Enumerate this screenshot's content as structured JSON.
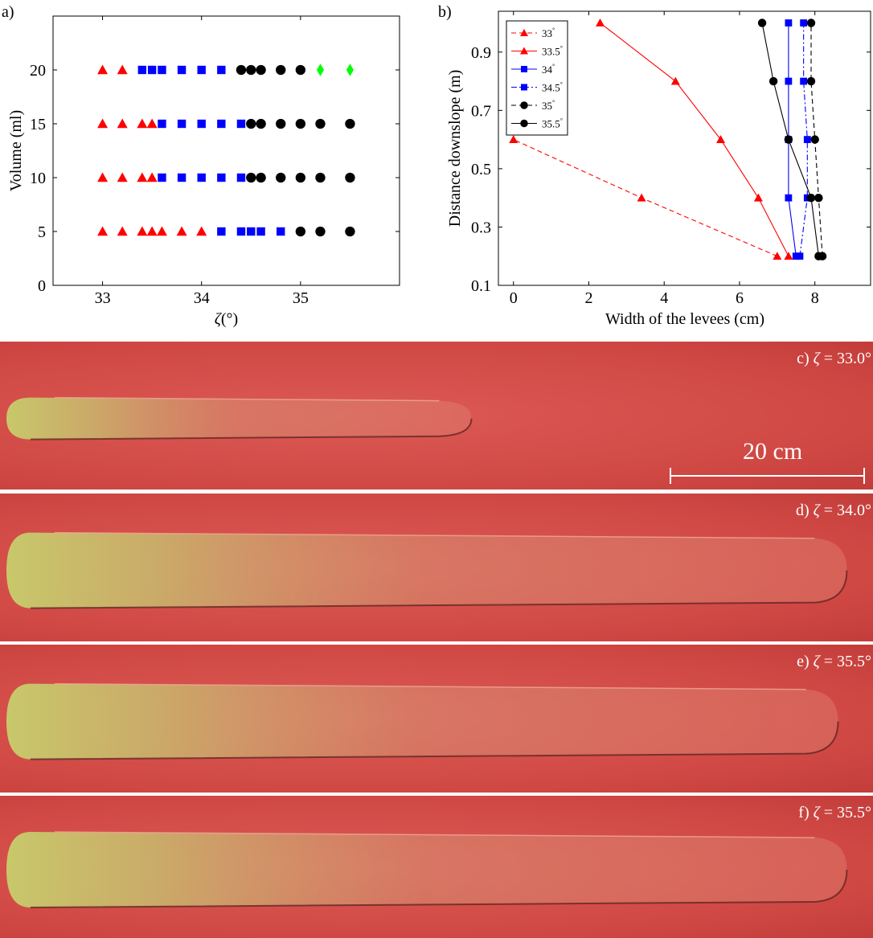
{
  "panel_a": {
    "label": "a)",
    "chart_data": {
      "type": "scatter",
      "xlabel_symbol": "ζ",
      "xlabel_unit": "(°)",
      "ylabel": "Volume (ml)",
      "xlim": [
        32.5,
        36.0
      ],
      "ylim": [
        0,
        25
      ],
      "xticks": [
        "33",
        "34",
        "35"
      ],
      "xtick_values": [
        33,
        34,
        35
      ],
      "yticks": [
        "0",
        "5",
        "10",
        "15",
        "20"
      ],
      "ytick_values": [
        0,
        5,
        10,
        15,
        20
      ],
      "grid": false,
      "legend": "none",
      "series": [
        {
          "marker": "triangle",
          "color": "#ff0000",
          "points": [
            [
              33,
              5
            ],
            [
              33.2,
              5
            ],
            [
              33.4,
              5
            ],
            [
              33.5,
              5
            ],
            [
              33.6,
              5
            ],
            [
              33.8,
              5
            ],
            [
              34.0,
              5
            ],
            [
              33,
              10
            ],
            [
              33.2,
              10
            ],
            [
              33.4,
              10
            ],
            [
              33.5,
              10
            ],
            [
              33,
              15
            ],
            [
              33.2,
              15
            ],
            [
              33.4,
              15
            ],
            [
              33.5,
              15
            ],
            [
              33,
              20
            ],
            [
              33.2,
              20
            ]
          ]
        },
        {
          "marker": "square",
          "color": "#0000ff",
          "points": [
            [
              34.2,
              5
            ],
            [
              34.4,
              5
            ],
            [
              34.5,
              5
            ],
            [
              34.6,
              5
            ],
            [
              34.8,
              5
            ],
            [
              33.6,
              10
            ],
            [
              33.8,
              10
            ],
            [
              34.0,
              10
            ],
            [
              34.2,
              10
            ],
            [
              34.4,
              10
            ],
            [
              33.6,
              15
            ],
            [
              33.8,
              15
            ],
            [
              34.0,
              15
            ],
            [
              34.2,
              15
            ],
            [
              34.4,
              15
            ],
            [
              33.4,
              20
            ],
            [
              33.5,
              20
            ],
            [
              33.6,
              20
            ],
            [
              33.8,
              20
            ],
            [
              34.0,
              20
            ],
            [
              34.2,
              20
            ]
          ]
        },
        {
          "marker": "circle",
          "color": "#000000",
          "points": [
            [
              35.0,
              5
            ],
            [
              35.2,
              5
            ],
            [
              35.5,
              5
            ],
            [
              34.5,
              10
            ],
            [
              34.6,
              10
            ],
            [
              34.8,
              10
            ],
            [
              35.0,
              10
            ],
            [
              35.2,
              10
            ],
            [
              35.5,
              10
            ],
            [
              34.5,
              15
            ],
            [
              34.6,
              15
            ],
            [
              34.8,
              15
            ],
            [
              35.0,
              15
            ],
            [
              35.2,
              15
            ],
            [
              35.5,
              15
            ],
            [
              34.4,
              20
            ],
            [
              34.5,
              20
            ],
            [
              34.6,
              20
            ],
            [
              34.8,
              20
            ],
            [
              35.0,
              20
            ]
          ]
        },
        {
          "marker": "diamond",
          "color": "#00ff00",
          "points": [
            [
              35.2,
              20
            ],
            [
              35.5,
              20
            ]
          ]
        }
      ]
    }
  },
  "panel_b": {
    "label": "b)",
    "chart_data": {
      "type": "line",
      "xlabel": "Width of the levees (cm)",
      "ylabel": "Distance downslope (m)",
      "xlim": [
        -0.4,
        9.5
      ],
      "ylim": [
        0.1,
        1.04
      ],
      "xticks": [
        "0",
        "2",
        "4",
        "6",
        "8"
      ],
      "xtick_values": [
        0,
        2,
        4,
        6,
        8
      ],
      "yticks": [
        "0.1",
        "0.3",
        "0.5",
        "0.7",
        "0.9"
      ],
      "ytick_values": [
        0.1,
        0.3,
        0.5,
        0.7,
        0.9
      ],
      "grid": false,
      "legend": "top-left",
      "series": [
        {
          "name": "33",
          "color": "#ff0000",
          "dash": "dashed",
          "marker": "triangle",
          "x": [
            7.0,
            3.4,
            0.0
          ],
          "y": [
            0.2,
            0.4,
            0.6
          ]
        },
        {
          "name": "33.5",
          "color": "#ff0000",
          "dash": "solid",
          "marker": "triangle",
          "x": [
            7.3,
            6.5,
            5.5,
            4.3,
            2.3
          ],
          "y": [
            0.2,
            0.4,
            0.6,
            0.8,
            1.0
          ]
        },
        {
          "name": "34",
          "color": "#0000ff",
          "dash": "solid",
          "marker": "square",
          "x": [
            7.5,
            7.3,
            7.3,
            7.3,
            7.3
          ],
          "y": [
            0.2,
            0.4,
            0.6,
            0.8,
            1.0
          ]
        },
        {
          "name": "34.5",
          "color": "#0000ff",
          "dash": "dashdot",
          "marker": "square",
          "x": [
            7.6,
            7.8,
            7.8,
            7.7,
            7.7
          ],
          "y": [
            0.2,
            0.4,
            0.6,
            0.8,
            1.0
          ]
        },
        {
          "name": "35",
          "color": "#000000",
          "dash": "dashed",
          "marker": "circle",
          "x": [
            8.2,
            8.1,
            8.0,
            7.9,
            7.9
          ],
          "y": [
            0.2,
            0.4,
            0.6,
            0.8,
            1.0
          ]
        },
        {
          "name": "35.5",
          "color": "#000000",
          "dash": "solid",
          "marker": "circle",
          "x": [
            8.1,
            7.9,
            7.3,
            6.9,
            6.6
          ],
          "y": [
            0.2,
            0.4,
            0.6,
            0.8,
            1.0
          ]
        }
      ],
      "legend_degree_symbol": "°"
    }
  },
  "photos": [
    {
      "label_prefix": "c)",
      "zeta": "ζ",
      "label_value": "= 33.0°",
      "flow_length_fraction": 0.54
    },
    {
      "label_prefix": "d)",
      "zeta": "ζ",
      "label_value": "= 34.0°",
      "flow_length_fraction": 0.97
    },
    {
      "label_prefix": "e)",
      "zeta": "ζ",
      "label_value": "= 35.5°",
      "flow_length_fraction": 0.96
    },
    {
      "label_prefix": "f)",
      "zeta": "ζ",
      "label_value": "= 35.5°",
      "flow_length_fraction": 0.97
    }
  ],
  "scale_bar": {
    "label": "20 cm"
  },
  "colors": {
    "background_red": "#d5504d",
    "deposit_yellow": "#c9c36e",
    "levee_dark": "#5a2320"
  }
}
